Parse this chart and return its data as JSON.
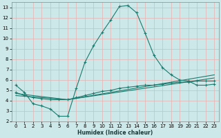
{
  "xlabel": "Humidex (Indice chaleur)",
  "bg_color": "#cde8e8",
  "grid_color": "#b8d8d8",
  "line_color": "#1a7a6e",
  "xlim": [
    -0.5,
    23.5
  ],
  "ylim": [
    2,
    13.5
  ],
  "xticks": [
    0,
    1,
    2,
    3,
    4,
    5,
    6,
    7,
    8,
    9,
    10,
    11,
    12,
    13,
    14,
    15,
    16,
    17,
    18,
    19,
    20,
    21,
    22,
    23
  ],
  "yticks": [
    2,
    3,
    4,
    5,
    6,
    7,
    8,
    9,
    10,
    11,
    12,
    13
  ],
  "series": [
    {
      "markers": true,
      "x": [
        0,
        1,
        2,
        3,
        4,
        5,
        6,
        7,
        8,
        9,
        10,
        11,
        12,
        13,
        14,
        15,
        16,
        17,
        18,
        19,
        20,
        21,
        22,
        23
      ],
      "y": [
        5.5,
        4.8,
        3.7,
        3.5,
        3.2,
        2.5,
        2.5,
        5.2,
        7.7,
        9.3,
        10.6,
        11.8,
        13.1,
        13.2,
        12.5,
        10.5,
        8.4,
        7.2,
        6.5,
        6.0,
        5.9,
        5.5,
        5.5,
        5.6
      ]
    },
    {
      "markers": true,
      "x": [
        0,
        1,
        2,
        3,
        4,
        5,
        6,
        7,
        8,
        9,
        10,
        11,
        12,
        13,
        14,
        15,
        16,
        17,
        18,
        19,
        20,
        21,
        22,
        23
      ],
      "y": [
        4.8,
        4.5,
        4.3,
        4.2,
        4.1,
        4.1,
        4.1,
        4.3,
        4.5,
        4.7,
        4.9,
        5.0,
        5.2,
        5.3,
        5.4,
        5.5,
        5.5,
        5.6,
        5.7,
        5.8,
        5.8,
        5.9,
        5.9,
        5.9
      ]
    },
    {
      "markers": false,
      "x": [
        0,
        6,
        23
      ],
      "y": [
        4.5,
        4.1,
        6.2
      ]
    },
    {
      "markers": false,
      "x": [
        0,
        6,
        23
      ],
      "y": [
        4.7,
        4.1,
        6.5
      ]
    }
  ]
}
